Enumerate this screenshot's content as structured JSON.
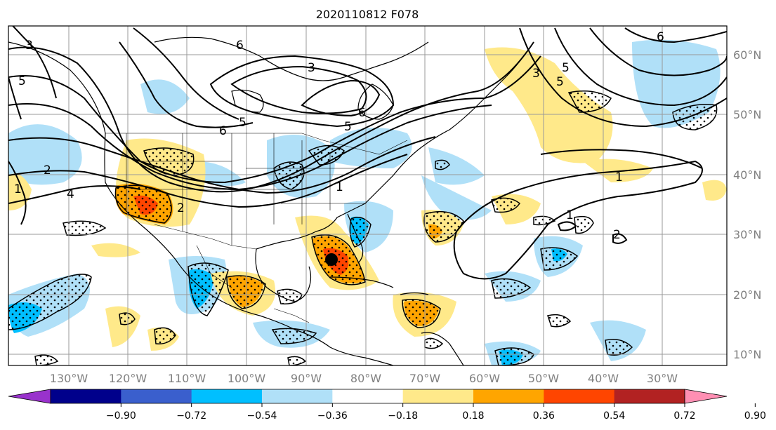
{
  "title": "2020110812 F078",
  "lon_labels": [
    "130°W",
    "120°W",
    "110°W",
    "100°W",
    "90°W",
    "80°W",
    "70°W",
    "60°W",
    "50°W",
    "40°W",
    "30°W"
  ],
  "lat_labels": [
    "60°N",
    "50°N",
    "40°N",
    "30°N",
    "20°N",
    "10°N"
  ],
  "colorbar": {
    "tick_labels": [
      "−0.90",
      "−0.72",
      "−0.54",
      "−0.36",
      "−0.18",
      "0.18",
      "0.36",
      "0.54",
      "0.72",
      "0.90"
    ],
    "colors": [
      "#9932cc",
      "#00008b",
      "#3a5fcd",
      "#00bfff",
      "#b0e0f8",
      "#ffffff",
      "#ffe98a",
      "#ffa500",
      "#ff4500",
      "#b22222",
      "#ff8fb3"
    ]
  },
  "contour_labels": [
    "6",
    "3",
    "5",
    "5",
    "6",
    "6",
    "5",
    "2",
    "1",
    "1",
    "3",
    "4",
    "5",
    "6",
    "3",
    "5",
    "1",
    "1",
    "2",
    "2"
  ],
  "colors": {
    "light_blue": "#b0e0f8",
    "blue": "#00bfff",
    "yellow": "#ffe98a",
    "orange": "#ffa500",
    "red": "#ff4500"
  }
}
